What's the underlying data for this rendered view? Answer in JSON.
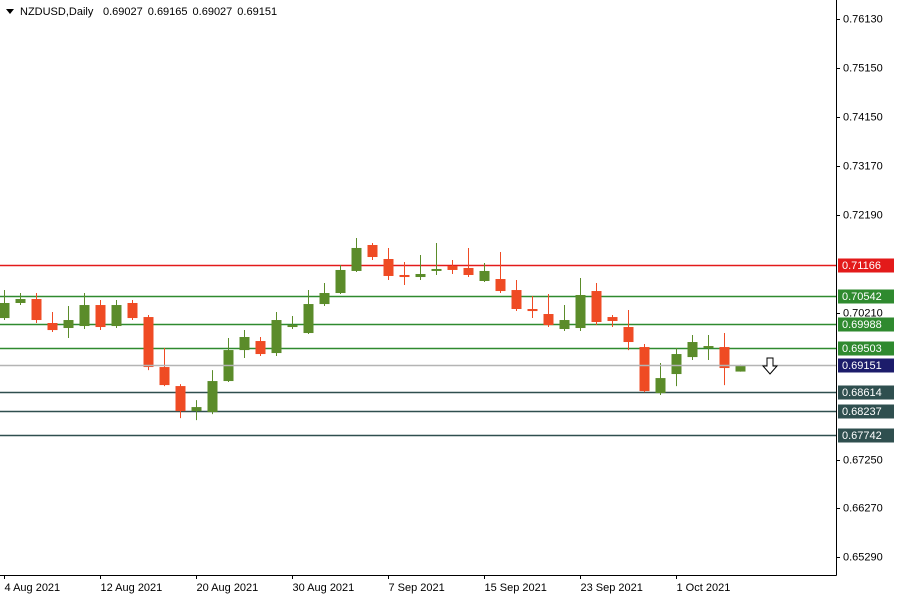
{
  "chart_data": {
    "type": "candlestick",
    "symbol": "NZDUSD,Daily",
    "categories": [
      "4 Aug 2021",
      null,
      null,
      null,
      null,
      null,
      "12 Aug 2021",
      null,
      null,
      null,
      null,
      null,
      "20 Aug 2021",
      null,
      null,
      null,
      null,
      null,
      "30 Aug 2021",
      null,
      null,
      null,
      null,
      null,
      "7 Sep 2021",
      null,
      null,
      null,
      null,
      null,
      "15 Sep 2021",
      null,
      null,
      null,
      null,
      null,
      "23 Sep 2021",
      null,
      null,
      null,
      null,
      null,
      "1 Oct 2021",
      null,
      null,
      null,
      null
    ],
    "open": [
      0.70105,
      0.70408,
      0.70488,
      0.70005,
      0.69904,
      0.69944,
      0.70367,
      0.69944,
      0.70408,
      0.70125,
      0.69118,
      0.68735,
      0.68231,
      0.68211,
      0.68836,
      0.6946,
      0.69642,
      0.694,
      0.69924,
      0.69803,
      0.70387,
      0.70609,
      0.71053,
      0.71576,
      0.71294,
      0.70972,
      0.70931,
      0.71053,
      0.71153,
      0.71113,
      0.70851,
      0.70891,
      0.70669,
      0.70287,
      0.70186,
      0.69884,
      0.69904,
      0.70649,
      0.70125,
      0.69924,
      0.69521,
      0.68594,
      0.68977,
      0.69319,
      0.69501,
      0.69521,
      0.69027
    ],
    "high": [
      0.70669,
      0.70609,
      0.70609,
      0.70226,
      0.70347,
      0.70609,
      0.70468,
      0.70468,
      0.70468,
      0.70166,
      0.69501,
      0.68775,
      0.68453,
      0.69057,
      0.69702,
      0.69863,
      0.69723,
      0.70226,
      0.70146,
      0.70669,
      0.70811,
      0.71173,
      0.71717,
      0.71617,
      0.71516,
      0.71234,
      0.71375,
      0.71617,
      0.71274,
      0.71516,
      0.71214,
      0.71435,
      0.70871,
      0.70549,
      0.70589,
      0.70367,
      0.70911,
      0.70811,
      0.70166,
      0.70266,
      0.69581,
      0.69199,
      0.69501,
      0.69763,
      0.69763,
      0.69803,
      0.69165
    ],
    "low": [
      0.70065,
      0.70367,
      0.70005,
      0.69823,
      0.69702,
      0.69884,
      0.69863,
      0.69904,
      0.70065,
      0.69057,
      0.68735,
      0.6809,
      0.6805,
      0.68171,
      0.68816,
      0.69299,
      0.6934,
      0.6934,
      0.69884,
      0.69783,
      0.70347,
      0.70589,
      0.71033,
      0.71274,
      0.70871,
      0.7077,
      0.70871,
      0.70972,
      0.70992,
      0.70931,
      0.70831,
      0.70609,
      0.70246,
      0.70105,
      0.69924,
      0.69843,
      0.69843,
      0.69964,
      0.69924,
      0.6946,
      0.68614,
      0.68554,
      0.68735,
      0.69259,
      0.69259,
      0.68755,
      0.69027
    ],
    "close": [
      0.70408,
      0.70488,
      0.70065,
      0.69863,
      0.70065,
      0.70367,
      0.69924,
      0.70367,
      0.70105,
      0.69118,
      0.68755,
      0.68231,
      0.68312,
      0.68836,
      0.6946,
      0.69723,
      0.6938,
      0.70065,
      0.69964,
      0.70387,
      0.70609,
      0.71073,
      0.71516,
      0.71334,
      0.70952,
      0.70931,
      0.70992,
      0.71093,
      0.71073,
      0.70972,
      0.71053,
      0.70649,
      0.70287,
      0.70246,
      0.69964,
      0.70065,
      0.70569,
      0.70025,
      0.70045,
      0.69622,
      0.68634,
      0.68896,
      0.6938,
      0.69622,
      0.69541,
      0.69098,
      0.69151
    ],
    "up_color": "#5b8c2a",
    "down_color": "#ef4b24",
    "ylim": [
      0.6493,
      0.7651
    ],
    "yticks": [
      {
        "value": 0.7613,
        "label": "0.76130"
      },
      {
        "value": 0.7515,
        "label": "0.75150"
      },
      {
        "value": 0.7415,
        "label": "0.74150"
      },
      {
        "value": 0.7317,
        "label": "0.73170"
      },
      {
        "value": 0.7219,
        "label": "0.72190"
      },
      {
        "value": 0.7021,
        "label": "0.70210"
      },
      {
        "value": 0.6725,
        "label": "0.67250"
      },
      {
        "value": 0.6627,
        "label": "0.66270"
      },
      {
        "value": 0.6529,
        "label": "0.65290"
      }
    ],
    "levels": [
      {
        "value": 0.71166,
        "color": "#e31a1a"
      },
      {
        "value": 0.70542,
        "color": "#2f8a2f"
      },
      {
        "value": 0.69988,
        "color": "#2f8a2f"
      },
      {
        "value": 0.69503,
        "color": "#2f8a2f"
      },
      {
        "value": 0.68614,
        "color": "#2f4f4f"
      },
      {
        "value": 0.68237,
        "color": "#2f4f4f"
      },
      {
        "value": 0.67742,
        "color": "#2f4f4f"
      }
    ],
    "current_color": "#1c1c6b",
    "grid": false
  }
}
